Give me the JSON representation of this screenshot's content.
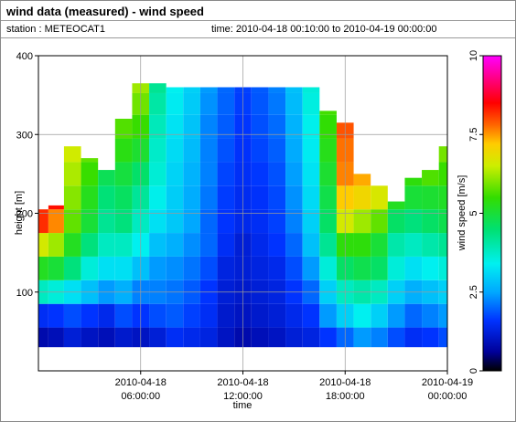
{
  "header": {
    "title": "wind data (measured) - wind speed",
    "station": "station : METEOCAT1",
    "timerange": "time: 2010-04-18 00:10:00 to 2010-04-19 00:00:00"
  },
  "chart_data": {
    "type": "heatmap",
    "title": "wind data (measured) - wind speed",
    "xlabel": "time",
    "ylabel": "height [m]",
    "xlim": [
      "2010-04-18 00:00:00",
      "2010-04-19 00:00:00"
    ],
    "ylim": [
      0,
      400
    ],
    "x_ticks": [
      {
        "value": "2010-04-18 06:00:00",
        "line1": "2010-04-18",
        "line2": "06:00:00"
      },
      {
        "value": "2010-04-18 12:00:00",
        "line1": "2010-04-18",
        "line2": "12:00:00"
      },
      {
        "value": "2010-04-18 18:00:00",
        "line1": "2010-04-18",
        "line2": "18:00:00"
      },
      {
        "value": "2010-04-19 00:00:00",
        "line1": "2010-04-19",
        "line2": "00:00:00"
      }
    ],
    "y_ticks": [
      100,
      200,
      300,
      400
    ],
    "grid": true,
    "colorbar": {
      "label": "wind speed [m/s]",
      "range": [
        0,
        10
      ],
      "ticks": [
        0,
        2.5,
        5,
        7.5,
        10
      ],
      "tick_labels": [
        "0",
        "2.5",
        "5",
        "7.5",
        "10"
      ],
      "colormap": [
        [
          0,
          "#000000"
        ],
        [
          0.06,
          "#000099"
        ],
        [
          0.16,
          "#0033ff"
        ],
        [
          0.25,
          "#00a8ff"
        ],
        [
          0.34,
          "#00f0f0"
        ],
        [
          0.45,
          "#00e070"
        ],
        [
          0.55,
          "#33dd00"
        ],
        [
          0.65,
          "#ccee00"
        ],
        [
          0.72,
          "#ffcc00"
        ],
        [
          0.78,
          "#ff6600"
        ],
        [
          0.85,
          "#ff0000"
        ],
        [
          1.0,
          "#ff00ff"
        ]
      ]
    },
    "x_hours": [
      0.17,
      1.0,
      2.0,
      3.0,
      4.0,
      5.0,
      6.0,
      7.0,
      8.0,
      9.0,
      10.0,
      11.0,
      12.0,
      13.0,
      14.0,
      15.0,
      16.0,
      17.0,
      18.0,
      19.0,
      20.0,
      21.0,
      22.0,
      23.0,
      24.0
    ],
    "profiles": [
      {
        "top": 205,
        "speeds": [
          [
            40,
            0.8
          ],
          [
            70,
            1.5
          ],
          [
            100,
            3.8
          ],
          [
            130,
            5.2
          ],
          [
            160,
            6.6
          ],
          [
            190,
            8.2
          ],
          [
            205,
            8.8
          ]
        ]
      },
      {
        "top": 210,
        "speeds": [
          [
            40,
            0.9
          ],
          [
            70,
            1.6
          ],
          [
            100,
            3.6
          ],
          [
            130,
            5.0
          ],
          [
            160,
            6.2
          ],
          [
            190,
            7.6
          ],
          [
            210,
            8.4
          ]
        ]
      },
      {
        "top": 285,
        "speeds": [
          [
            40,
            1.2
          ],
          [
            70,
            1.8
          ],
          [
            100,
            3.2
          ],
          [
            130,
            4.4
          ],
          [
            160,
            5.2
          ],
          [
            190,
            5.8
          ],
          [
            240,
            6.2
          ],
          [
            285,
            6.6
          ]
        ]
      },
      {
        "top": 270,
        "speeds": [
          [
            40,
            1.0
          ],
          [
            70,
            1.6
          ],
          [
            100,
            2.8
          ],
          [
            130,
            3.6
          ],
          [
            160,
            4.4
          ],
          [
            190,
            5.0
          ],
          [
            240,
            5.4
          ],
          [
            270,
            5.8
          ]
        ]
      },
      {
        "top": 255,
        "speeds": [
          [
            40,
            0.9
          ],
          [
            70,
            1.4
          ],
          [
            100,
            2.4
          ],
          [
            130,
            3.2
          ],
          [
            160,
            3.8
          ],
          [
            190,
            4.2
          ],
          [
            240,
            4.6
          ],
          [
            255,
            4.8
          ]
        ]
      },
      {
        "top": 320,
        "speeds": [
          [
            40,
            1.1
          ],
          [
            70,
            1.8
          ],
          [
            100,
            2.6
          ],
          [
            130,
            3.2
          ],
          [
            160,
            3.8
          ],
          [
            190,
            4.4
          ],
          [
            240,
            4.8
          ],
          [
            300,
            5.6
          ],
          [
            320,
            5.8
          ]
        ]
      },
      {
        "top": 365,
        "speeds": [
          [
            40,
            1.0
          ],
          [
            70,
            1.6
          ],
          [
            100,
            2.2
          ],
          [
            130,
            2.8
          ],
          [
            160,
            3.4
          ],
          [
            190,
            3.8
          ],
          [
            240,
            4.4
          ],
          [
            300,
            5.4
          ],
          [
            365,
            6.2
          ]
        ]
      },
      {
        "top": 365,
        "speeds": [
          [
            40,
            1.2
          ],
          [
            70,
            1.8
          ],
          [
            100,
            2.2
          ],
          [
            130,
            2.4
          ],
          [
            160,
            2.8
          ],
          [
            190,
            3.2
          ],
          [
            240,
            3.6
          ],
          [
            300,
            3.8
          ],
          [
            365,
            4.2
          ]
        ]
      },
      {
        "top": 360,
        "speeds": [
          [
            40,
            1.5
          ],
          [
            70,
            1.9
          ],
          [
            100,
            2.1
          ],
          [
            130,
            2.3
          ],
          [
            160,
            2.6
          ],
          [
            190,
            2.9
          ],
          [
            240,
            3.0
          ],
          [
            300,
            3.2
          ],
          [
            360,
            3.4
          ]
        ]
      },
      {
        "top": 360,
        "speeds": [
          [
            40,
            1.4
          ],
          [
            70,
            1.7
          ],
          [
            100,
            1.9
          ],
          [
            130,
            2.1
          ],
          [
            160,
            2.3
          ],
          [
            190,
            2.5
          ],
          [
            240,
            2.6
          ],
          [
            300,
            2.8
          ],
          [
            360,
            3.0
          ]
        ]
      },
      {
        "top": 360,
        "speeds": [
          [
            40,
            1.3
          ],
          [
            70,
            1.5
          ],
          [
            100,
            1.6
          ],
          [
            130,
            1.8
          ],
          [
            160,
            2.0
          ],
          [
            190,
            2.0
          ],
          [
            240,
            2.2
          ],
          [
            300,
            2.2
          ],
          [
            360,
            2.4
          ]
        ]
      },
      {
        "top": 360,
        "speeds": [
          [
            40,
            1.0
          ],
          [
            70,
            1.1
          ],
          [
            100,
            1.2
          ],
          [
            130,
            1.3
          ],
          [
            160,
            1.5
          ],
          [
            190,
            1.6
          ],
          [
            240,
            1.7
          ],
          [
            300,
            1.9
          ],
          [
            360,
            2.0
          ]
        ]
      },
      {
        "top": 360,
        "speeds": [
          [
            40,
            0.8
          ],
          [
            70,
            1.0
          ],
          [
            100,
            1.1
          ],
          [
            130,
            1.2
          ],
          [
            160,
            1.2
          ],
          [
            190,
            1.4
          ],
          [
            240,
            1.5
          ],
          [
            300,
            1.6
          ],
          [
            360,
            1.7
          ]
        ]
      },
      {
        "top": 360,
        "speeds": [
          [
            40,
            0.9
          ],
          [
            70,
            1.1
          ],
          [
            100,
            1.2
          ],
          [
            130,
            1.3
          ],
          [
            160,
            1.4
          ],
          [
            190,
            1.5
          ],
          [
            240,
            1.6
          ],
          [
            300,
            1.8
          ],
          [
            360,
            1.9
          ]
        ]
      },
      {
        "top": 360,
        "speeds": [
          [
            40,
            1.0
          ],
          [
            70,
            1.2
          ],
          [
            100,
            1.3
          ],
          [
            130,
            1.4
          ],
          [
            160,
            1.6
          ],
          [
            190,
            1.7
          ],
          [
            240,
            1.8
          ],
          [
            300,
            2.0
          ],
          [
            360,
            2.2
          ]
        ]
      },
      {
        "top": 360,
        "speeds": [
          [
            40,
            1.2
          ],
          [
            70,
            1.4
          ],
          [
            100,
            1.6
          ],
          [
            130,
            1.8
          ],
          [
            160,
            2.0
          ],
          [
            190,
            2.2
          ],
          [
            240,
            2.4
          ],
          [
            300,
            2.6
          ],
          [
            360,
            2.8
          ]
        ]
      },
      {
        "top": 360,
        "speeds": [
          [
            40,
            1.3
          ],
          [
            70,
            1.6
          ],
          [
            100,
            2.0
          ],
          [
            130,
            2.4
          ],
          [
            160,
            2.8
          ],
          [
            190,
            3.0
          ],
          [
            240,
            3.2
          ],
          [
            300,
            3.4
          ],
          [
            360,
            3.6
          ]
        ]
      },
      {
        "top": 330,
        "speeds": [
          [
            40,
            1.6
          ],
          [
            70,
            2.4
          ],
          [
            100,
            3.0
          ],
          [
            130,
            3.6
          ],
          [
            160,
            4.2
          ],
          [
            190,
            4.6
          ],
          [
            240,
            5.0
          ],
          [
            300,
            5.4
          ],
          [
            330,
            5.6
          ]
        ]
      },
      {
        "top": 315,
        "speeds": [
          [
            40,
            2.0
          ],
          [
            70,
            3.0
          ],
          [
            100,
            3.8
          ],
          [
            130,
            4.6
          ],
          [
            160,
            5.4
          ],
          [
            190,
            6.6
          ],
          [
            240,
            7.6
          ],
          [
            300,
            7.8
          ],
          [
            315,
            8.0
          ]
        ]
      },
      {
        "top": 250,
        "speeds": [
          [
            40,
            2.4
          ],
          [
            70,
            3.4
          ],
          [
            100,
            4.0
          ],
          [
            130,
            4.8
          ],
          [
            160,
            5.4
          ],
          [
            190,
            6.2
          ],
          [
            220,
            7.0
          ],
          [
            250,
            7.4
          ]
        ]
      },
      {
        "top": 235,
        "speeds": [
          [
            40,
            2.2
          ],
          [
            70,
            3.0
          ],
          [
            100,
            3.8
          ],
          [
            130,
            4.6
          ],
          [
            160,
            5.0
          ],
          [
            190,
            5.8
          ],
          [
            215,
            6.6
          ],
          [
            235,
            6.8
          ]
        ]
      },
      {
        "top": 215,
        "speeds": [
          [
            40,
            1.8
          ],
          [
            70,
            2.4
          ],
          [
            100,
            3.0
          ],
          [
            130,
            3.6
          ],
          [
            160,
            4.0
          ],
          [
            190,
            4.6
          ],
          [
            215,
            5.2
          ]
        ]
      },
      {
        "top": 245,
        "speeds": [
          [
            40,
            1.5
          ],
          [
            70,
            2.0
          ],
          [
            100,
            2.6
          ],
          [
            130,
            3.2
          ],
          [
            160,
            3.8
          ],
          [
            190,
            4.4
          ],
          [
            220,
            5.0
          ],
          [
            245,
            5.4
          ]
        ]
      },
      {
        "top": 255,
        "speeds": [
          [
            40,
            1.6
          ],
          [
            70,
            2.2
          ],
          [
            100,
            2.8
          ],
          [
            130,
            3.4
          ],
          [
            160,
            4.0
          ],
          [
            190,
            4.6
          ],
          [
            230,
            5.2
          ],
          [
            255,
            5.8
          ]
        ]
      },
      {
        "top": 285,
        "speeds": [
          [
            40,
            1.8
          ],
          [
            70,
            2.4
          ],
          [
            100,
            3.0
          ],
          [
            130,
            3.6
          ],
          [
            160,
            4.2
          ],
          [
            190,
            4.8
          ],
          [
            240,
            5.4
          ],
          [
            285,
            6.0
          ]
        ]
      }
    ]
  }
}
